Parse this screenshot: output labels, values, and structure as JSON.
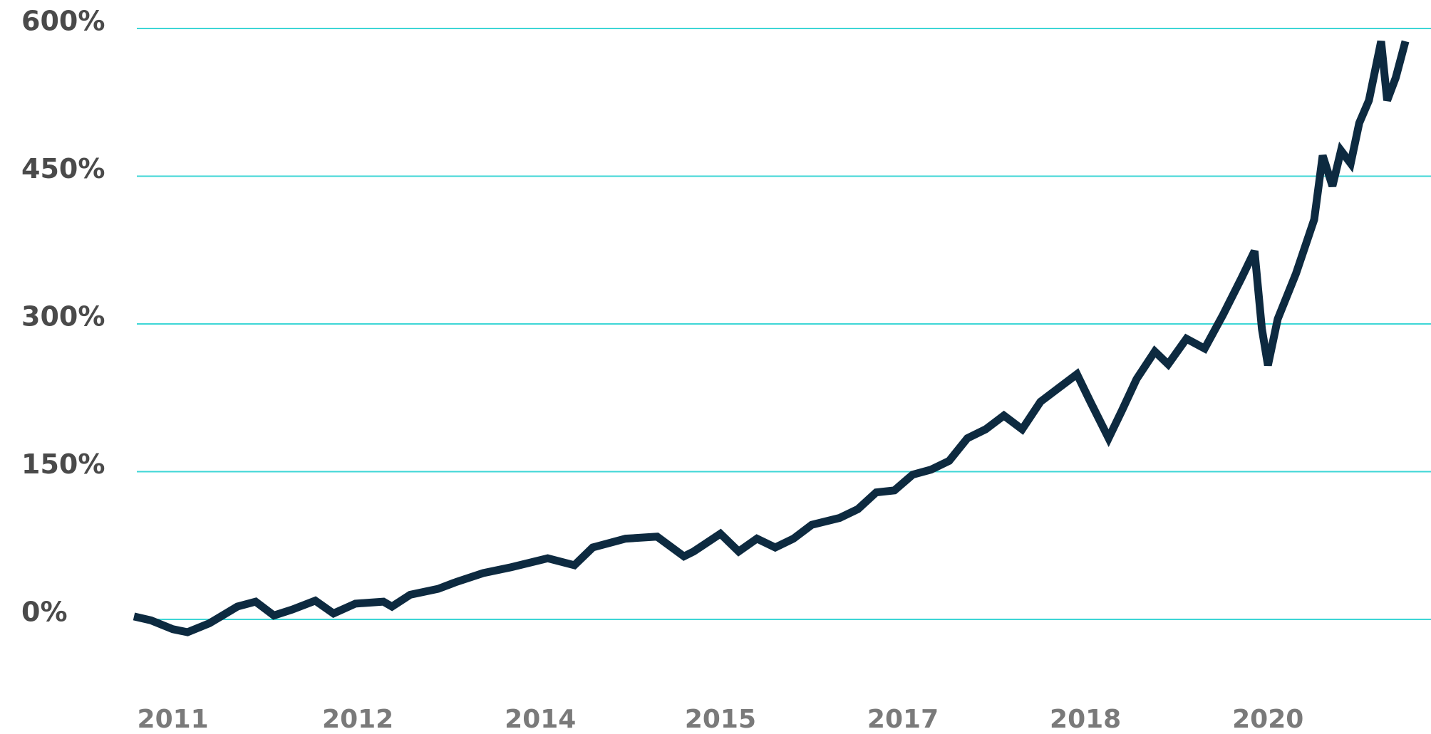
{
  "chart_data": {
    "type": "line",
    "x": [
      2010.88,
      2011.02,
      2011.2,
      2011.32,
      2011.5,
      2011.73,
      2011.88,
      2012.03,
      2012.18,
      2012.37,
      2012.52,
      2012.7,
      2012.93,
      2013.0,
      2013.15,
      2013.38,
      2013.53,
      2013.75,
      2013.98,
      2014.28,
      2014.5,
      2014.65,
      2014.92,
      2015.18,
      2015.4,
      2015.48,
      2015.7,
      2015.85,
      2016.0,
      2016.15,
      2016.3,
      2016.45,
      2016.68,
      2016.83,
      2016.98,
      2017.13,
      2017.28,
      2017.43,
      2017.58,
      2017.73,
      2017.88,
      2018.03,
      2018.18,
      2018.33,
      2018.48,
      2018.63,
      2018.74,
      2018.89,
      2019.0,
      2019.12,
      2019.27,
      2019.38,
      2019.53,
      2019.68,
      2019.83,
      2019.98,
      2020.09,
      2020.15,
      2020.2,
      2020.28,
      2020.43,
      2020.58,
      2020.65,
      2020.73,
      2020.8,
      2020.88,
      2020.95,
      2021.03,
      2021.13,
      2021.18,
      2021.25,
      2021.33
    ],
    "series": [
      {
        "color": "#0d2a40",
        "values": [
          3,
          -1,
          -10,
          -13,
          -4,
          13,
          18,
          4,
          10,
          19,
          6,
          16,
          18,
          13,
          25,
          31,
          38,
          47,
          53,
          62,
          55,
          73,
          82,
          84,
          64,
          69,
          87,
          69,
          82,
          73,
          82,
          96,
          103,
          112,
          129,
          131,
          147,
          152,
          161,
          184,
          193,
          207,
          193,
          221,
          235,
          249,
          221,
          184,
          212,
          244,
          272,
          259,
          285,
          275,
          309,
          346,
          374,
          295,
          258,
          305,
          351,
          406,
          471,
          440,
          476,
          463,
          504,
          527,
          587,
          527,
          550,
          587
        ]
      }
    ],
    "xlim": [
      2010.88,
      2021.54
    ],
    "xticks": [
      {
        "value": 2011.2,
        "label": "2011"
      },
      {
        "value": 2012.72,
        "label": "2012"
      },
      {
        "value": 2014.22,
        "label": "2014"
      },
      {
        "value": 2015.7,
        "label": "2015"
      },
      {
        "value": 2017.2,
        "label": "2017"
      },
      {
        "value": 2018.7,
        "label": "2018"
      },
      {
        "value": 2020.2,
        "label": "2020"
      }
    ],
    "ylim": [
      -140,
      630
    ],
    "yticks": [
      {
        "value": 0,
        "label": "0%"
      },
      {
        "value": 150,
        "label": "150%"
      },
      {
        "value": 300,
        "label": "300%"
      },
      {
        "value": 450,
        "label": "450%"
      },
      {
        "value": 600,
        "label": "600%"
      }
    ],
    "grid": true,
    "grid_color": "#3dd6d6"
  }
}
